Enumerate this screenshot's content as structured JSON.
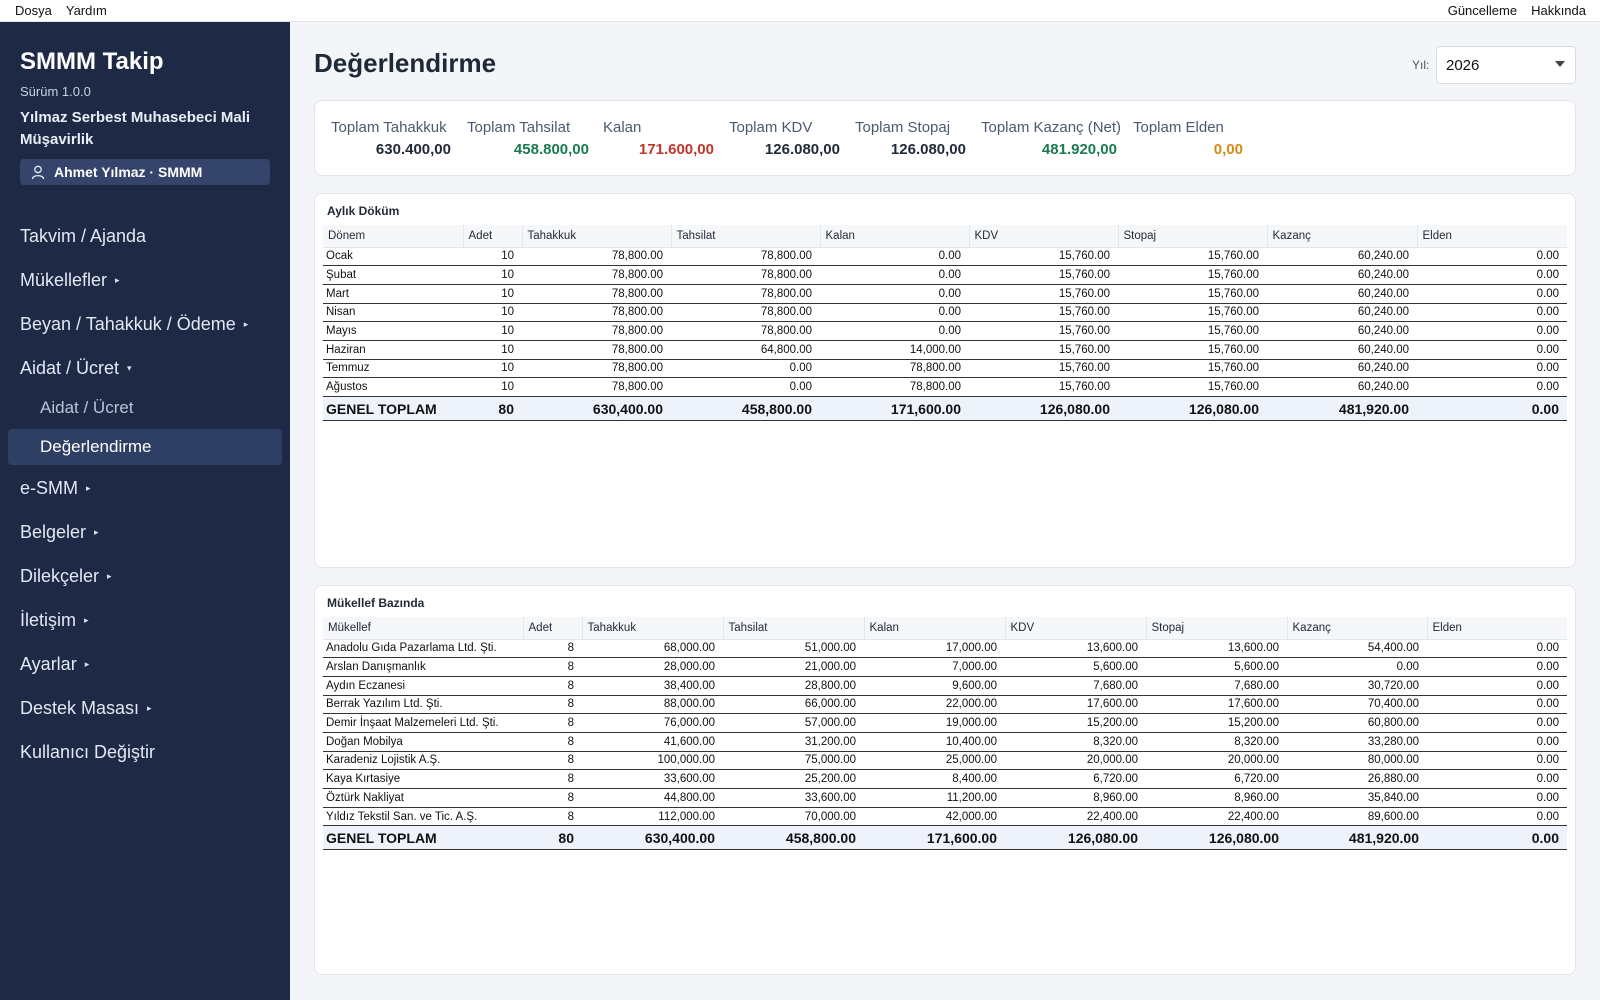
{
  "menubar": {
    "left": [
      "Dosya",
      "Yardım"
    ],
    "right": [
      "Güncelleme",
      "Hakkında"
    ]
  },
  "sidebar": {
    "brand": "SMMM Takip",
    "version": "Sürüm 1.0.0",
    "company": "Yılmaz Serbest Muhasebeci Mali Müşavirlik",
    "user": "Ahmet Yılmaz · SMMM",
    "nav": {
      "takvim": "Takvim / Ajanda",
      "mukellefler": "Mükellefler",
      "beyan": "Beyan / Tahakkuk / Ödeme",
      "aidat": "Aidat / Ücret",
      "aidat_sub": "Aidat / Ücret",
      "degerlendirme": "Değerlendirme",
      "esmm": "e-SMM",
      "belgeler": "Belgeler",
      "dilekceler": "Dilekçeler",
      "iletisim": "İletişim",
      "ayarlar": "Ayarlar",
      "destek": "Destek Masası",
      "kullanici": "Kullanıcı Değiştir"
    },
    "collapsed_arrow": "▸",
    "expanded_arrow": "▾"
  },
  "page": {
    "title": "Değerlendirme",
    "year_label": "Yıl:",
    "year_value": "2026"
  },
  "summary": {
    "tahakkuk": {
      "label": "Toplam Tahakkuk",
      "value": "630.400,00"
    },
    "tahsilat": {
      "label": "Toplam Tahsilat",
      "value": "458.800,00"
    },
    "kalan": {
      "label": "Kalan",
      "value": "171.600,00"
    },
    "kdv": {
      "label": "Toplam KDV",
      "value": "126.080,00"
    },
    "stopaj": {
      "label": "Toplam Stopaj",
      "value": "126.080,00"
    },
    "kazanc": {
      "label": "Toplam Kazanç (Net)",
      "value": "481.920,00"
    },
    "elden": {
      "label": "Toplam Elden",
      "value": "0,00"
    }
  },
  "colors": {
    "positive": "#1b7a52",
    "negative": "#c2352b",
    "warning": "#d48a12",
    "sidebar_bg": "#1e2a45"
  },
  "monthly": {
    "title": "Aylık Döküm",
    "headers": [
      "Dönem",
      "Adet",
      "Tahakkuk",
      "Tahsilat",
      "Kalan",
      "KDV",
      "Stopaj",
      "Kazanç",
      "Elden"
    ],
    "rows": [
      [
        "Ocak",
        "10",
        "78,800.00",
        "78,800.00",
        "0.00",
        "15,760.00",
        "15,760.00",
        "60,240.00",
        "0.00"
      ],
      [
        "Şubat",
        "10",
        "78,800.00",
        "78,800.00",
        "0.00",
        "15,760.00",
        "15,760.00",
        "60,240.00",
        "0.00"
      ],
      [
        "Mart",
        "10",
        "78,800.00",
        "78,800.00",
        "0.00",
        "15,760.00",
        "15,760.00",
        "60,240.00",
        "0.00"
      ],
      [
        "Nisan",
        "10",
        "78,800.00",
        "78,800.00",
        "0.00",
        "15,760.00",
        "15,760.00",
        "60,240.00",
        "0.00"
      ],
      [
        "Mayıs",
        "10",
        "78,800.00",
        "78,800.00",
        "0.00",
        "15,760.00",
        "15,760.00",
        "60,240.00",
        "0.00"
      ],
      [
        "Haziran",
        "10",
        "78,800.00",
        "64,800.00",
        "14,000.00",
        "15,760.00",
        "15,760.00",
        "60,240.00",
        "0.00"
      ],
      [
        "Temmuz",
        "10",
        "78,800.00",
        "0.00",
        "78,800.00",
        "15,760.00",
        "15,760.00",
        "60,240.00",
        "0.00"
      ],
      [
        "Ağustos",
        "10",
        "78,800.00",
        "0.00",
        "78,800.00",
        "15,760.00",
        "15,760.00",
        "60,240.00",
        "0.00"
      ]
    ],
    "total": [
      "GENEL TOPLAM",
      "80",
      "630,400.00",
      "458,800.00",
      "171,600.00",
      "126,080.00",
      "126,080.00",
      "481,920.00",
      "0.00"
    ]
  },
  "clients": {
    "title": "Mükellef Bazında",
    "headers": [
      "Mükellef",
      "Adet",
      "Tahakkuk",
      "Tahsilat",
      "Kalan",
      "KDV",
      "Stopaj",
      "Kazanç",
      "Elden"
    ],
    "rows": [
      [
        "Anadolu Gıda Pazarlama Ltd. Şti.",
        "8",
        "68,000.00",
        "51,000.00",
        "17,000.00",
        "13,600.00",
        "13,600.00",
        "54,400.00",
        "0.00"
      ],
      [
        "Arslan Danışmanlık",
        "8",
        "28,000.00",
        "21,000.00",
        "7,000.00",
        "5,600.00",
        "5,600.00",
        "0.00",
        "0.00"
      ],
      [
        "Aydın Eczanesi",
        "8",
        "38,400.00",
        "28,800.00",
        "9,600.00",
        "7,680.00",
        "7,680.00",
        "30,720.00",
        "0.00"
      ],
      [
        "Berrak Yazılım Ltd. Şti.",
        "8",
        "88,000.00",
        "66,000.00",
        "22,000.00",
        "17,600.00",
        "17,600.00",
        "70,400.00",
        "0.00"
      ],
      [
        "Demir İnşaat Malzemeleri Ltd. Şti.",
        "8",
        "76,000.00",
        "57,000.00",
        "19,000.00",
        "15,200.00",
        "15,200.00",
        "60,800.00",
        "0.00"
      ],
      [
        "Doğan Mobilya",
        "8",
        "41,600.00",
        "31,200.00",
        "10,400.00",
        "8,320.00",
        "8,320.00",
        "33,280.00",
        "0.00"
      ],
      [
        "Karadeniz Lojistik A.Ş.",
        "8",
        "100,000.00",
        "75,000.00",
        "25,000.00",
        "20,000.00",
        "20,000.00",
        "80,000.00",
        "0.00"
      ],
      [
        "Kaya Kırtasiye",
        "8",
        "33,600.00",
        "25,200.00",
        "8,400.00",
        "6,720.00",
        "6,720.00",
        "26,880.00",
        "0.00"
      ],
      [
        "Öztürk Nakliyat",
        "8",
        "44,800.00",
        "33,600.00",
        "11,200.00",
        "8,960.00",
        "8,960.00",
        "35,840.00",
        "0.00"
      ],
      [
        "Yıldız Tekstil San. ve Tic. A.Ş.",
        "8",
        "112,000.00",
        "70,000.00",
        "42,000.00",
        "22,400.00",
        "22,400.00",
        "89,600.00",
        "0.00"
      ]
    ],
    "total": [
      "GENEL TOPLAM",
      "80",
      "630,400.00",
      "458,800.00",
      "171,600.00",
      "126,080.00",
      "126,080.00",
      "481,920.00",
      "0.00"
    ]
  }
}
